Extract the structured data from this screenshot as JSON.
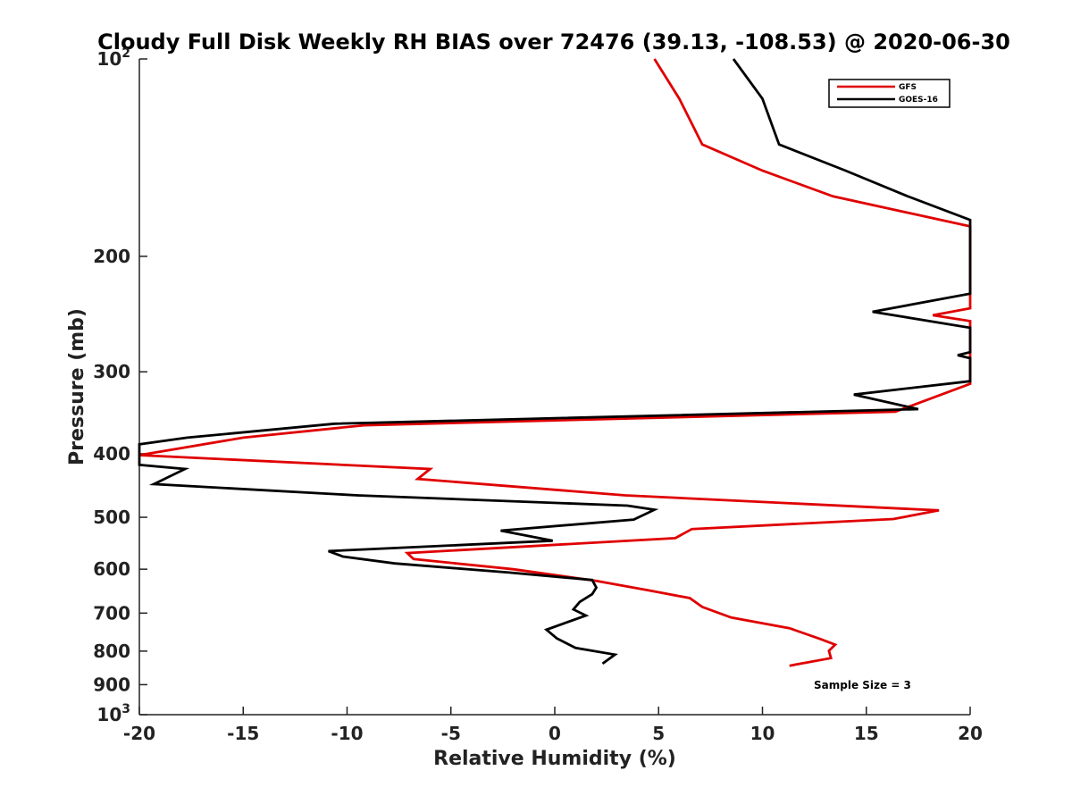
{
  "chart_data": {
    "type": "line",
    "title": "Cloudy Full Disk Weekly RH BIAS over 72476 (39.13, -108.53) @ 2020-06-30",
    "xlabel": "Relative Humidity (%)",
    "ylabel": "Pressure (mb)",
    "xlim": [
      -20,
      20
    ],
    "ylim": [
      100,
      1000
    ],
    "y_scale": "log",
    "y_reversed": true,
    "x_ticks": [
      -20,
      -15,
      -10,
      -5,
      0,
      5,
      10,
      15,
      20
    ],
    "x_tick_labels": [
      "-20",
      "-15",
      "-10",
      "-5",
      "0",
      "5",
      "10",
      "15",
      "20"
    ],
    "y_ticks": [
      200,
      300,
      400,
      500,
      600,
      700,
      800,
      900
    ],
    "y_tick_labels": [
      "200",
      "300",
      "400",
      "500",
      "600",
      "700",
      "800",
      "900"
    ],
    "y_end_ticks": [
      {
        "value": 100,
        "base": "10",
        "exp": "2"
      },
      {
        "value": 1000,
        "base": "10",
        "exp": "3"
      }
    ],
    "legend": {
      "position": "top-right"
    },
    "annotation": "Sample Size = 3",
    "series": [
      {
        "name": "GFS",
        "color": "#e00000",
        "points": [
          [
            4.8,
            100
          ],
          [
            6.0,
            115
          ],
          [
            7.1,
            135
          ],
          [
            10.0,
            148
          ],
          [
            13.4,
            162
          ],
          [
            20.0,
            180
          ],
          [
            20.0,
            240
          ],
          [
            18.2,
            246
          ],
          [
            20.0,
            251
          ],
          [
            20.0,
            313
          ],
          [
            16.4,
            345
          ],
          [
            -9.2,
            362
          ],
          [
            -15.0,
            378
          ],
          [
            -20.0,
            402
          ],
          [
            -6.0,
            422
          ],
          [
            -6.6,
            437
          ],
          [
            3.4,
            463
          ],
          [
            18.5,
            488
          ],
          [
            16.3,
            503
          ],
          [
            6.6,
            521
          ],
          [
            5.8,
            538
          ],
          [
            -7.1,
            567
          ],
          [
            -6.8,
            579
          ],
          [
            -2.0,
            600
          ],
          [
            2.0,
            625
          ],
          [
            4.5,
            646
          ],
          [
            6.5,
            664
          ],
          [
            7.1,
            685
          ],
          [
            8.5,
            711
          ],
          [
            11.3,
            738
          ],
          [
            12.8,
            767
          ],
          [
            13.5,
            782
          ],
          [
            13.2,
            799
          ],
          [
            13.3,
            820
          ],
          [
            11.3,
            842
          ]
        ]
      },
      {
        "name": "GOES-16",
        "color": "#000000",
        "points": [
          [
            8.6,
            100
          ],
          [
            10.0,
            115
          ],
          [
            10.8,
            135
          ],
          [
            14.0,
            148
          ],
          [
            17.0,
            162
          ],
          [
            20.0,
            176
          ],
          [
            20.0,
            228
          ],
          [
            15.3,
            243
          ],
          [
            20.0,
            257
          ],
          [
            20.0,
            280
          ],
          [
            19.4,
            283
          ],
          [
            20.0,
            286
          ],
          [
            20.0,
            310
          ],
          [
            14.4,
            325
          ],
          [
            17.5,
            342
          ],
          [
            -10.6,
            360
          ],
          [
            -17.7,
            378
          ],
          [
            -20.0,
            387
          ],
          [
            -20.0,
            416
          ],
          [
            -17.8,
            422
          ],
          [
            -19.3,
            445
          ],
          [
            -9.5,
            463
          ],
          [
            3.5,
            480
          ],
          [
            4.8,
            487
          ],
          [
            3.8,
            504
          ],
          [
            -2.6,
            524
          ],
          [
            -0.1,
            543
          ],
          [
            -10.9,
            563
          ],
          [
            -10.2,
            574
          ],
          [
            -7.7,
            588
          ],
          [
            -2.2,
            607
          ],
          [
            1.8,
            623
          ],
          [
            2.0,
            640
          ],
          [
            1.8,
            655
          ],
          [
            1.2,
            673
          ],
          [
            0.9,
            691
          ],
          [
            1.5,
            706
          ],
          [
            -0.4,
            742
          ],
          [
            0.1,
            765
          ],
          [
            1.0,
            791
          ],
          [
            2.9,
            810
          ],
          [
            2.3,
            836
          ]
        ]
      }
    ]
  }
}
